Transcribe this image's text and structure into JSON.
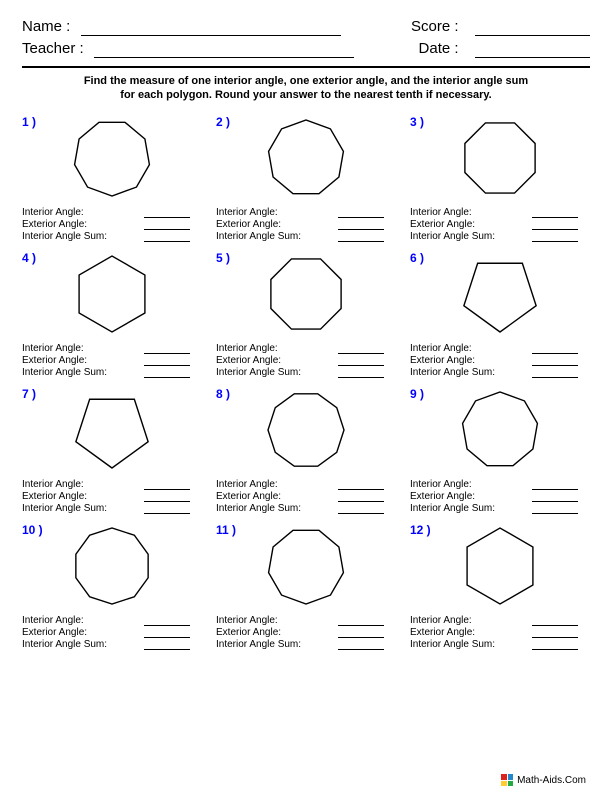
{
  "header": {
    "name_label": "Name :",
    "teacher_label": "Teacher :",
    "score_label": "Score :",
    "date_label": "Date :"
  },
  "instructions_line1": "Find the measure of one interior angle, one exterior angle, and the interior angle sum",
  "instructions_line2": "for each polygon. Round your answer to the nearest tenth if necessary.",
  "answer_labels": {
    "interior": "Interior Angle:",
    "exterior": "Exterior Angle:",
    "sum": "Interior Angle Sum:"
  },
  "problems": [
    {
      "num": "1 )",
      "sides": 9,
      "rotation": 10
    },
    {
      "num": "2 )",
      "sides": 9,
      "rotation": -10
    },
    {
      "num": "3 )",
      "sides": 8,
      "rotation": 22.5
    },
    {
      "num": "4 )",
      "sides": 6,
      "rotation": 30
    },
    {
      "num": "5 )",
      "sides": 8,
      "rotation": 22.5
    },
    {
      "num": "6 )",
      "sides": 5,
      "rotation": 90
    },
    {
      "num": "7 )",
      "sides": 5,
      "rotation": 90
    },
    {
      "num": "8 )",
      "sides": 10,
      "rotation": 0
    },
    {
      "num": "9 )",
      "sides": 9,
      "rotation": -10
    },
    {
      "num": "10 )",
      "sides": 10,
      "rotation": 18
    },
    {
      "num": "11 )",
      "sides": 9,
      "rotation": 10
    },
    {
      "num": "12 )",
      "sides": 6,
      "rotation": 30
    }
  ],
  "footer_text": "Math-Aids.Com",
  "style": {
    "num_color": "#0000ff",
    "shape_stroke": "#000000",
    "shape_stroke_width": 1.4,
    "shape_radius": 38,
    "bg": "#ffffff"
  }
}
